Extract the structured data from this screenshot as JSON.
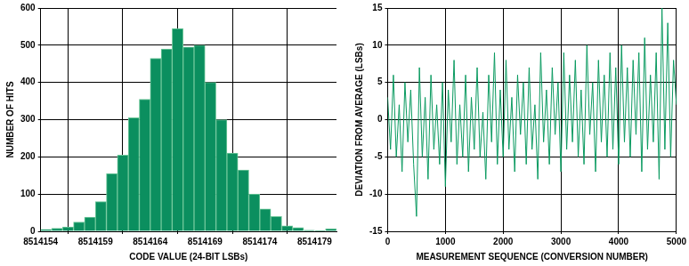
{
  "chart_data": [
    {
      "type": "histogram",
      "x_label": "CODE VALUE (24-BIT LSBs)",
      "y_label": "NUMBER OF HITS",
      "bins": [
        8514154,
        8514155,
        8514156,
        8514157,
        8514158,
        8514159,
        8514160,
        8514161,
        8514162,
        8514163,
        8514164,
        8514165,
        8514166,
        8514167,
        8514168,
        8514169,
        8514170,
        8514171,
        8514172,
        8514173,
        8514174,
        8514175,
        8514176,
        8514177,
        8514178,
        8514179,
        8514180,
        8514181
      ],
      "values": [
        5,
        8,
        12,
        25,
        38,
        80,
        155,
        205,
        305,
        355,
        465,
        490,
        545,
        495,
        500,
        400,
        300,
        210,
        165,
        100,
        60,
        40,
        15,
        10,
        3,
        2,
        7
      ],
      "color": "#0b8f5f",
      "xlim": [
        8514154,
        8514181
      ],
      "xticks": [
        8514154,
        8514159,
        8514164,
        8514169,
        8514174,
        8514179
      ],
      "ylim": [
        0,
        600
      ],
      "yticks": [
        0,
        100,
        200,
        300,
        400,
        500,
        600
      ],
      "grid": true
    },
    {
      "type": "line",
      "x_label": "MEASUREMENT SEQUENCE (CONVERSION NUMBER)",
      "y_label": "DEVIATION FROM AVERAGE (LSBs)",
      "x": [
        0,
        50,
        100,
        150,
        200,
        250,
        300,
        350,
        400,
        450,
        500,
        550,
        600,
        650,
        700,
        750,
        800,
        850,
        900,
        950,
        1000,
        1050,
        1100,
        1150,
        1200,
        1250,
        1300,
        1350,
        1400,
        1450,
        1500,
        1550,
        1600,
        1650,
        1700,
        1750,
        1800,
        1850,
        1900,
        1950,
        2000,
        2050,
        2100,
        2150,
        2200,
        2250,
        2300,
        2350,
        2400,
        2450,
        2500,
        2550,
        2600,
        2650,
        2700,
        2750,
        2800,
        2850,
        2900,
        2950,
        3000,
        3050,
        3100,
        3150,
        3200,
        3250,
        3300,
        3350,
        3400,
        3450,
        3500,
        3550,
        3600,
        3650,
        3700,
        3750,
        3800,
        3850,
        3900,
        3950,
        4000,
        4050,
        4100,
        4150,
        4200,
        4250,
        4300,
        4350,
        4400,
        4450,
        4500,
        4550,
        4600,
        4650,
        4700,
        4750,
        4800,
        4850,
        4900,
        4950,
        5000
      ],
      "values": [
        3,
        -4,
        6,
        -5,
        2,
        -7,
        5,
        -3,
        4,
        -6,
        -13,
        7,
        -5,
        3,
        -8,
        6,
        -4,
        2,
        -6,
        5,
        -9,
        4,
        -3,
        8,
        -6,
        2,
        -5,
        6,
        -7,
        3,
        -4,
        7,
        -5,
        1,
        -8,
        6,
        -3,
        9,
        -6,
        4,
        -5,
        8,
        -4,
        3,
        -7,
        6,
        -2,
        5,
        -6,
        7,
        -4,
        2,
        -8,
        9,
        -3,
        4,
        -6,
        7,
        -2,
        5,
        -7,
        9,
        -4,
        6,
        -3,
        8,
        -5,
        4,
        -6,
        10,
        -2,
        5,
        -7,
        8,
        -3,
        6,
        -5,
        9,
        -4,
        7,
        -6,
        10,
        -3,
        7,
        -5,
        8,
        -2,
        9,
        -7,
        11,
        -4,
        6,
        -3,
        9,
        -8,
        15,
        -4,
        13,
        -5,
        8,
        2
      ],
      "color": "#0a9a60",
      "xlim": [
        0,
        5000
      ],
      "xticks": [
        0,
        1000,
        2000,
        3000,
        4000,
        5000
      ],
      "ylim": [
        -15,
        15
      ],
      "yticks": [
        -15,
        -10,
        -5,
        0,
        5,
        10,
        15
      ],
      "grid": true
    }
  ]
}
